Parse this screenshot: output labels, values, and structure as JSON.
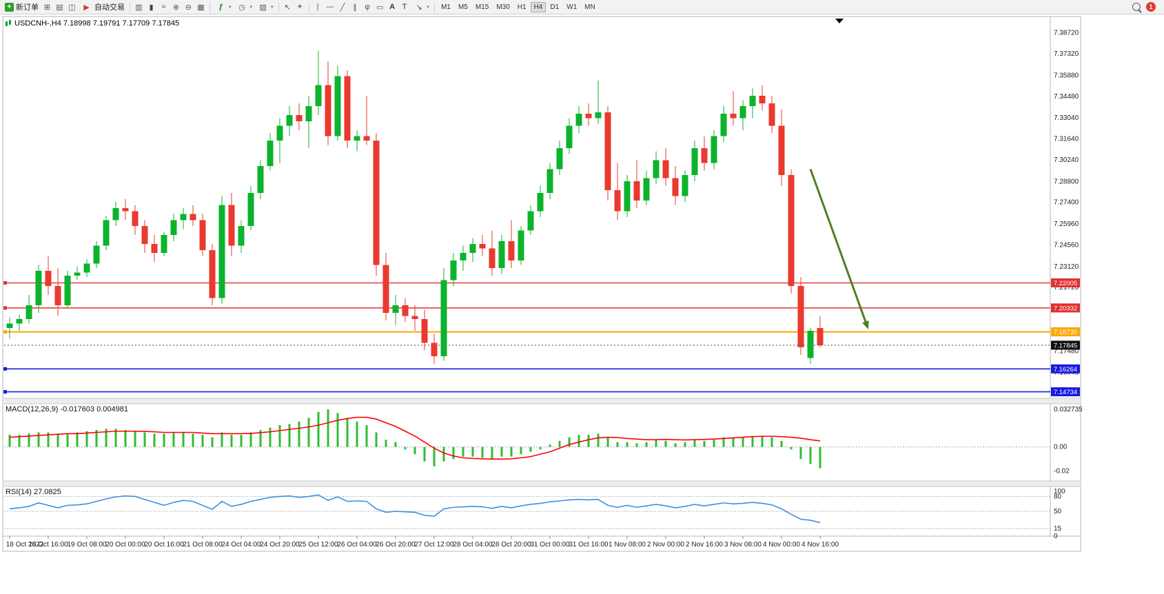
{
  "toolbar": {
    "new_order_label": "新订单",
    "autotrading_label": "自动交易",
    "timeframes": [
      "M1",
      "M5",
      "M15",
      "M30",
      "H1",
      "H4",
      "D1",
      "W1",
      "MN"
    ],
    "active_timeframe": "H4",
    "notification_count": "1"
  },
  "chart": {
    "symbol_line": "USDCNH-,H4  7.18998 7.19791 7.17709 7.17845",
    "ohlc": {
      "open": "7.18998",
      "high": "7.19791",
      "low": "7.17709",
      "close": "7.17845"
    }
  },
  "indicators": {
    "macd_label": "MACD(12,26,9) -0.017603 0.004981",
    "rsi_label": "RSI(14) 27.0825"
  },
  "chart_data": [
    {
      "type": "candlestick",
      "title": "USDCNH-,H4",
      "colors": {
        "up": "#0cb32c",
        "down": "#ea392e"
      },
      "ylim": [
        7.143,
        7.3905
      ],
      "y_ticks": [
        "7.38720",
        "7.37320",
        "7.35880",
        "7.34480",
        "7.33040",
        "7.31640",
        "7.30240",
        "7.28800",
        "7.27400",
        "7.25960",
        "7.24560",
        "7.23120",
        "7.21720",
        "7.20280",
        "7.18880",
        "7.17480",
        "7.16040",
        "7.14640"
      ],
      "x_labels": [
        "18 Oct 2022",
        "18 Oct 16:00",
        "19 Oct 08:00",
        "20 Oct 00:00",
        "20 Oct 16:00",
        "21 Oct 08:00",
        "24 Oct 04:00",
        "24 Oct 20:00",
        "25 Oct 12:00",
        "26 Oct 04:00",
        "26 Oct 20:00",
        "27 Oct 12:00",
        "28 Oct 04:00",
        "28 Oct 20:00",
        "31 Oct 00:00",
        "31 Oct 16:00",
        "1 Nov 08:00",
        "2 Nov 00:00",
        "2 Nov 16:00",
        "3 Nov 08:00",
        "4 Nov 00:00",
        "4 Nov 16:00"
      ],
      "label_every": 4,
      "candles": [
        [
          7.19,
          7.197,
          7.183,
          7.193
        ],
        [
          7.193,
          7.199,
          7.188,
          7.196
        ],
        [
          7.196,
          7.212,
          7.193,
          7.205
        ],
        [
          7.205,
          7.232,
          7.2,
          7.228
        ],
        [
          7.228,
          7.238,
          7.212,
          7.218
        ],
        [
          7.218,
          7.23,
          7.198,
          7.205
        ],
        [
          7.205,
          7.228,
          7.203,
          7.225
        ],
        [
          7.225,
          7.231,
          7.222,
          7.227
        ],
        [
          7.227,
          7.236,
          7.224,
          7.233
        ],
        [
          7.233,
          7.248,
          7.23,
          7.245
        ],
        [
          7.245,
          7.265,
          7.242,
          7.262
        ],
        [
          7.262,
          7.274,
          7.258,
          7.27
        ],
        [
          7.27,
          7.276,
          7.262,
          7.268
        ],
        [
          7.268,
          7.272,
          7.252,
          7.258
        ],
        [
          7.258,
          7.262,
          7.24,
          7.246
        ],
        [
          7.246,
          7.252,
          7.234,
          7.24
        ],
        [
          7.24,
          7.254,
          7.238,
          7.252
        ],
        [
          7.252,
          7.266,
          7.248,
          7.262
        ],
        [
          7.262,
          7.27,
          7.256,
          7.266
        ],
        [
          7.266,
          7.272,
          7.258,
          7.262
        ],
        [
          7.262,
          7.266,
          7.238,
          7.242
        ],
        [
          7.242,
          7.246,
          7.205,
          7.21
        ],
        [
          7.21,
          7.278,
          7.206,
          7.272
        ],
        [
          7.272,
          7.28,
          7.238,
          7.245
        ],
        [
          7.245,
          7.262,
          7.24,
          7.258
        ],
        [
          7.258,
          7.285,
          7.255,
          7.28
        ],
        [
          7.28,
          7.302,
          7.276,
          7.298
        ],
        [
          7.298,
          7.32,
          7.295,
          7.315
        ],
        [
          7.315,
          7.33,
          7.3,
          7.325
        ],
        [
          7.325,
          7.338,
          7.318,
          7.332
        ],
        [
          7.332,
          7.34,
          7.322,
          7.328
        ],
        [
          7.328,
          7.345,
          7.31,
          7.338
        ],
        [
          7.338,
          7.375,
          7.332,
          7.352
        ],
        [
          7.352,
          7.368,
          7.312,
          7.318
        ],
        [
          7.318,
          7.365,
          7.315,
          7.358
        ],
        [
          7.358,
          7.362,
          7.31,
          7.315
        ],
        [
          7.315,
          7.322,
          7.308,
          7.318
        ],
        [
          7.318,
          7.345,
          7.312,
          7.315
        ],
        [
          7.315,
          7.32,
          7.225,
          7.232
        ],
        [
          7.232,
          7.24,
          7.195,
          7.2
        ],
        [
          7.2,
          7.212,
          7.192,
          7.205
        ],
        [
          7.205,
          7.21,
          7.194,
          7.198
        ],
        [
          7.198,
          7.205,
          7.188,
          7.196
        ],
        [
          7.196,
          7.202,
          7.175,
          7.18
        ],
        [
          7.18,
          7.186,
          7.166,
          7.171
        ],
        [
          7.171,
          7.23,
          7.168,
          7.222
        ],
        [
          7.222,
          7.24,
          7.218,
          7.235
        ],
        [
          7.235,
          7.245,
          7.228,
          7.24
        ],
        [
          7.24,
          7.25,
          7.234,
          7.246
        ],
        [
          7.246,
          7.252,
          7.238,
          7.243
        ],
        [
          7.243,
          7.255,
          7.225,
          7.23
        ],
        [
          7.23,
          7.252,
          7.226,
          7.248
        ],
        [
          7.248,
          7.262,
          7.23,
          7.235
        ],
        [
          7.235,
          7.258,
          7.232,
          7.255
        ],
        [
          7.255,
          7.272,
          7.252,
          7.268
        ],
        [
          7.268,
          7.285,
          7.264,
          7.28
        ],
        [
          7.28,
          7.3,
          7.276,
          7.296
        ],
        [
          7.296,
          7.315,
          7.292,
          7.31
        ],
        [
          7.31,
          7.33,
          7.306,
          7.325
        ],
        [
          7.325,
          7.338,
          7.32,
          7.333
        ],
        [
          7.333,
          7.34,
          7.325,
          7.33
        ],
        [
          7.33,
          7.355,
          7.326,
          7.334
        ],
        [
          7.334,
          7.338,
          7.275,
          7.282
        ],
        [
          7.282,
          7.3,
          7.262,
          7.268
        ],
        [
          7.268,
          7.292,
          7.264,
          7.288
        ],
        [
          7.288,
          7.302,
          7.27,
          7.275
        ],
        [
          7.275,
          7.295,
          7.272,
          7.29
        ],
        [
          7.29,
          7.308,
          7.286,
          7.302
        ],
        [
          7.302,
          7.31,
          7.285,
          7.29
        ],
        [
          7.29,
          7.298,
          7.272,
          7.278
        ],
        [
          7.278,
          7.295,
          7.274,
          7.292
        ],
        [
          7.292,
          7.315,
          7.288,
          7.31
        ],
        [
          7.31,
          7.318,
          7.295,
          7.3
        ],
        [
          7.3,
          7.322,
          7.296,
          7.318
        ],
        [
          7.318,
          7.338,
          7.314,
          7.333
        ],
        [
          7.333,
          7.348,
          7.325,
          7.33
        ],
        [
          7.33,
          7.342,
          7.322,
          7.338
        ],
        [
          7.338,
          7.35,
          7.33,
          7.345
        ],
        [
          7.345,
          7.352,
          7.335,
          7.34
        ],
        [
          7.34,
          7.345,
          7.32,
          7.325
        ],
        [
          7.325,
          7.336,
          7.285,
          7.292
        ],
        [
          7.292,
          7.296,
          7.213,
          7.218
        ],
        [
          7.218,
          7.224,
          7.172,
          7.177
        ],
        [
          7.17,
          7.19,
          7.166,
          7.188
        ],
        [
          7.18998,
          7.19791,
          7.17709,
          7.17845
        ]
      ],
      "hlines": [
        {
          "price": 7.22005,
          "label": "7.22005",
          "color": "#e03030",
          "width": 1.4
        },
        {
          "price": 7.20332,
          "label": "7.20332",
          "color": "#e03030",
          "width": 1.4
        },
        {
          "price": 7.18735,
          "label": "7.18735",
          "color": "#ffa800",
          "width": 2
        },
        {
          "price": 7.16264,
          "label": "7.16264",
          "color": "#1a1ae0",
          "width": 1.6
        },
        {
          "price": 7.14734,
          "label": "7.14734",
          "color": "#1a1ae0",
          "width": 1.6
        }
      ],
      "current_price": {
        "price": 7.17845,
        "label": "7.17845",
        "color": "#111111"
      },
      "arrow": {
        "from_bar": 83,
        "from_price": 7.296,
        "to_bar": 89,
        "to_price": 7.189,
        "color": "#4c7f23"
      }
    },
    {
      "type": "line",
      "name": "MACD",
      "axis_labels": [
        {
          "v": 0.032735,
          "t": "0.032735"
        },
        {
          "v": 0,
          "t": "0.00"
        },
        {
          "v": -0.02,
          "t": "-0.02"
        }
      ],
      "ylim": [
        -0.027,
        0.0345
      ],
      "histogram_color": "#2fbe2f",
      "signal_color": "#ff0000",
      "histogram": [
        0.01,
        0.01,
        0.011,
        0.012,
        0.012,
        0.011,
        0.011,
        0.012,
        0.013,
        0.014,
        0.015,
        0.015,
        0.014,
        0.013,
        0.012,
        0.011,
        0.011,
        0.012,
        0.012,
        0.011,
        0.01,
        0.008,
        0.012,
        0.01,
        0.01,
        0.012,
        0.014,
        0.016,
        0.018,
        0.019,
        0.021,
        0.024,
        0.029,
        0.031,
        0.028,
        0.024,
        0.021,
        0.018,
        0.012,
        0.006,
        0.004,
        -0.002,
        -0.006,
        -0.012,
        -0.016,
        -0.012,
        -0.01,
        -0.008,
        -0.008,
        -0.009,
        -0.01,
        -0.008,
        -0.008,
        -0.006,
        -0.004,
        -0.002,
        0.002,
        0.005,
        0.008,
        0.01,
        0.01,
        0.011,
        0.008,
        0.004,
        0.004,
        0.003,
        0.004,
        0.006,
        0.005,
        0.003,
        0.004,
        0.006,
        0.005,
        0.006,
        0.008,
        0.008,
        0.008,
        0.009,
        0.009,
        0.008,
        0.005,
        -0.002,
        -0.01,
        -0.014,
        -0.017603
      ],
      "signal": [
        0.008,
        0.0085,
        0.009,
        0.0095,
        0.01,
        0.0105,
        0.011,
        0.011,
        0.0115,
        0.012,
        0.0125,
        0.013,
        0.013,
        0.013,
        0.0128,
        0.0125,
        0.012,
        0.012,
        0.012,
        0.012,
        0.0115,
        0.011,
        0.011,
        0.011,
        0.011,
        0.0112,
        0.0118,
        0.0125,
        0.0135,
        0.0145,
        0.0155,
        0.0165,
        0.018,
        0.02,
        0.022,
        0.0235,
        0.0245,
        0.0245,
        0.023,
        0.02,
        0.017,
        0.013,
        0.009,
        0.004,
        -0.001,
        -0.005,
        -0.0075,
        -0.009,
        -0.0095,
        -0.0098,
        -0.01,
        -0.01,
        -0.0098,
        -0.009,
        -0.008,
        -0.006,
        -0.004,
        -0.001,
        0.002,
        0.004,
        0.006,
        0.0075,
        0.008,
        0.0078,
        0.007,
        0.0065,
        0.006,
        0.006,
        0.0062,
        0.006,
        0.0058,
        0.006,
        0.0062,
        0.0065,
        0.007,
        0.0075,
        0.008,
        0.0085,
        0.0088,
        0.0088,
        0.0085,
        0.008,
        0.0072,
        0.006,
        0.004981
      ]
    },
    {
      "type": "line",
      "name": "RSI",
      "line_color": "#3d8fdd",
      "levels": [
        80,
        50,
        15
      ],
      "axis_labels": [
        {
          "v": 100,
          "t": "100"
        },
        {
          "v": 80,
          "t": "80"
        },
        {
          "v": 50,
          "t": "50"
        },
        {
          "v": 15,
          "t": "15"
        },
        {
          "v": 0,
          "t": "0"
        }
      ],
      "ylim": [
        0,
        100
      ],
      "values": [
        55,
        57,
        60,
        67,
        62,
        57,
        62,
        63,
        65,
        70,
        75,
        79,
        81,
        80,
        74,
        68,
        62,
        68,
        72,
        70,
        62,
        54,
        70,
        60,
        64,
        70,
        74,
        78,
        80,
        81,
        78,
        80,
        83,
        72,
        79,
        70,
        71,
        70,
        55,
        48,
        50,
        49,
        48,
        42,
        40,
        55,
        58,
        59,
        60,
        59,
        56,
        60,
        57,
        61,
        64,
        66,
        69,
        71,
        73,
        74,
        73,
        74,
        62,
        58,
        62,
        58,
        61,
        64,
        61,
        57,
        60,
        64,
        61,
        64,
        67,
        65,
        66,
        68,
        66,
        63,
        55,
        44,
        34,
        32,
        27.0825
      ]
    }
  ]
}
